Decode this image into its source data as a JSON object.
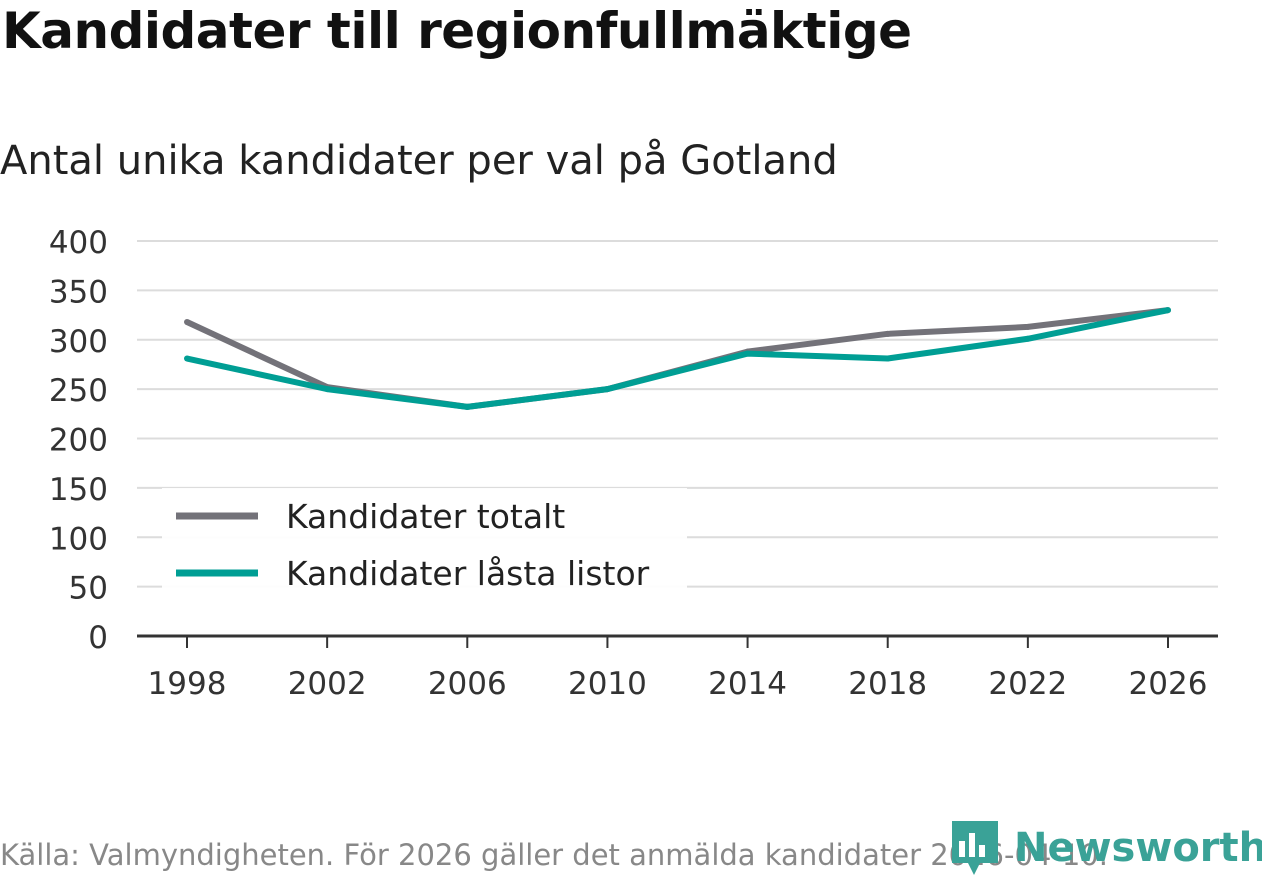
{
  "title": "Kandidater till regionfullmäktige",
  "subtitle": "Antal unika kandidater per val på Gotland",
  "source": "Källa: Valmyndigheten. För 2026 gäller det anmälda kandidater 2026-04-10.",
  "logo": {
    "text": "Newsworthy",
    "icon": "bar-chart-icon",
    "color": "#3aa297"
  },
  "chart_data": {
    "type": "line",
    "title": "Kandidater till regionfullmäktige",
    "subtitle": "Antal unika kandidater per val på Gotland",
    "xlabel": "",
    "ylabel": "",
    "x": [
      "1998",
      "2002",
      "2006",
      "2010",
      "2014",
      "2018",
      "2022",
      "2026"
    ],
    "ylim": [
      0,
      400
    ],
    "yticks": [
      "0",
      "50",
      "100",
      "150",
      "200",
      "250",
      "300",
      "350",
      "400"
    ],
    "grid": true,
    "legend_position": "bottom-left",
    "series": [
      {
        "name": "Kandidater totalt",
        "color": "#737279",
        "values": [
          318,
          252,
          232,
          250,
          288,
          306,
          313,
          330
        ]
      },
      {
        "name": "Kandidater låsta listor",
        "color": "#009e94",
        "values": [
          281,
          250,
          232,
          250,
          286,
          281,
          301,
          330
        ]
      }
    ]
  }
}
